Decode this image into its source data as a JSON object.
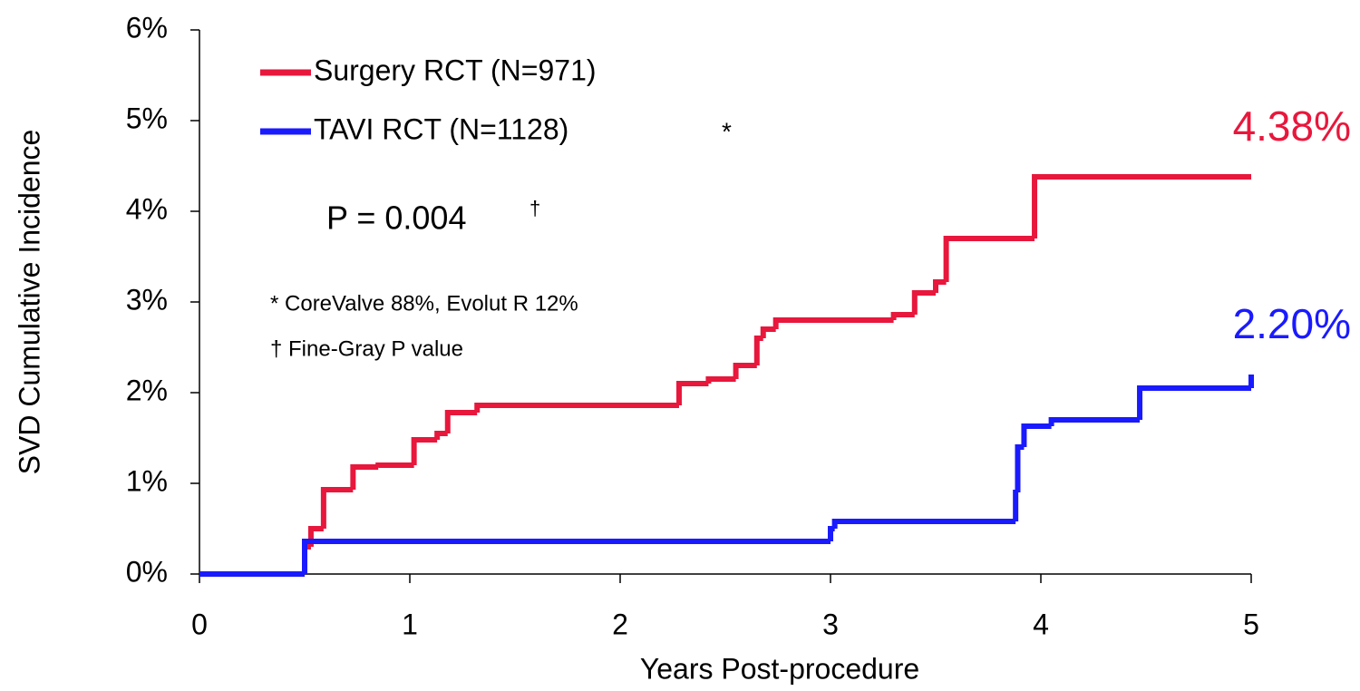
{
  "chart_data": {
    "type": "step",
    "x_label": "Years Post-procedure",
    "y_label": "SVD Cumulative Incidence",
    "xlim": [
      0,
      5
    ],
    "xticks": [
      0,
      1,
      2,
      3,
      4,
      5
    ],
    "ylim": [
      0,
      6
    ],
    "yticks": [
      {
        "value": 0,
        "label": "0%"
      },
      {
        "value": 1,
        "label": "1%"
      },
      {
        "value": 2,
        "label": "2%"
      },
      {
        "value": 3,
        "label": "3%"
      },
      {
        "value": 4,
        "label": "4%"
      },
      {
        "value": 5,
        "label": "5%"
      },
      {
        "value": 6,
        "label": "6%"
      }
    ],
    "series": [
      {
        "name": "Surgery RCT (N=971)",
        "color": "#e8173c",
        "x": [
          0,
          0.5,
          0.53,
          0.59,
          0.73,
          0.85,
          1.02,
          1.13,
          1.18,
          1.32,
          2.28,
          2.42,
          2.55,
          2.65,
          2.68,
          2.74,
          3.3,
          3.4,
          3.5,
          3.55,
          3.97,
          5
        ],
        "values": [
          0,
          0.3,
          0.5,
          0.93,
          1.18,
          1.2,
          1.48,
          1.55,
          1.78,
          1.86,
          2.1,
          2.15,
          2.3,
          2.6,
          2.7,
          2.8,
          2.86,
          3.1,
          3.22,
          3.7,
          4.38,
          4.38
        ],
        "end_label": {
          "value": 4.38,
          "label": "4.38%"
        }
      },
      {
        "name": "TAVI RCT (N=1128)",
        "color": "#1a1aff",
        "legend_mark": "*",
        "x": [
          0,
          0.5,
          3.0,
          3.02,
          3.88,
          3.89,
          3.92,
          4.05,
          4.47,
          5
        ],
        "values": [
          0,
          0.36,
          0.5,
          0.58,
          0.9,
          1.4,
          1.63,
          1.7,
          2.05,
          2.2
        ],
        "end_label": {
          "value": 2.2,
          "label": "2.20%"
        }
      }
    ],
    "p_value": "P = 0.004",
    "p_value_mark": "†",
    "notes": [
      "* CoreValve 88%, Evolut R 12%",
      "† Fine-Gray P value"
    ]
  }
}
